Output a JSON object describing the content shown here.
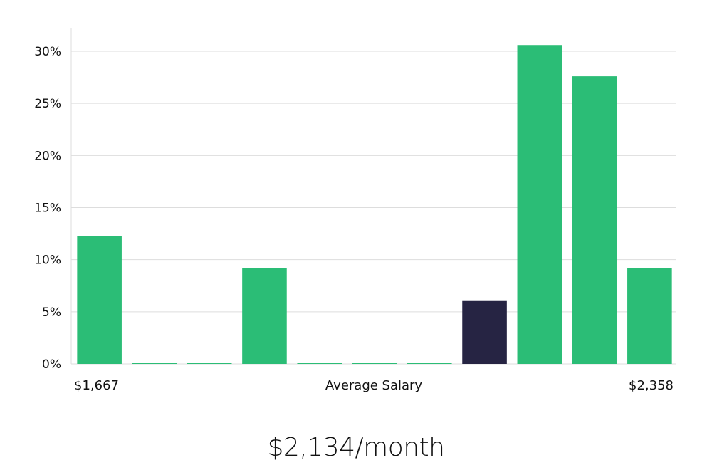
{
  "chart_data": {
    "type": "bar",
    "title": "",
    "xlabel": "Average Salary",
    "ylabel": "",
    "x_range_labels": {
      "min": "$1,667",
      "max": "$2,358"
    },
    "categories": [
      "bin1",
      "bin2",
      "bin3",
      "bin4",
      "bin5",
      "bin6",
      "bin7",
      "bin8",
      "bin9",
      "bin10",
      "bin11"
    ],
    "values": [
      12.3,
      0,
      0,
      9.2,
      0,
      0,
      0,
      6.1,
      30.6,
      27.6,
      9.2
    ],
    "highlight_index": 7,
    "ylim": [
      0,
      32
    ],
    "yticks": [
      0,
      5,
      10,
      15,
      20,
      25,
      30
    ],
    "ytick_labels": [
      "0%",
      "5%",
      "10%",
      "15%",
      "20%",
      "25%",
      "30%"
    ],
    "grid": true,
    "colors": {
      "bar": "#2bbd76",
      "highlight": "#262443",
      "grid": "#dddddd"
    }
  },
  "headline": "$2,134/month"
}
